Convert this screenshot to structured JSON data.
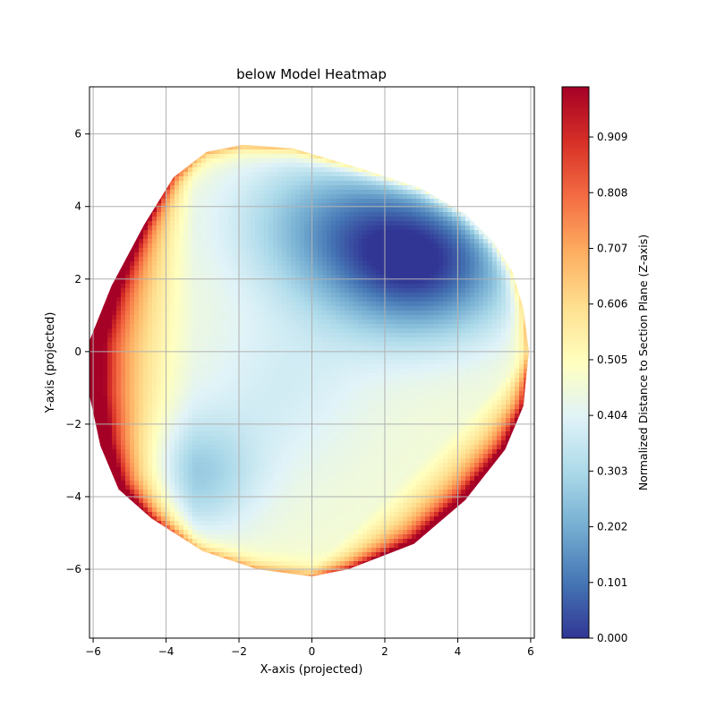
{
  "chart_data": {
    "type": "heatmap",
    "title": "below Model Heatmap",
    "xlabel": "X-axis (projected)",
    "ylabel": "Y-axis (projected)",
    "xlim": [
      -6.1,
      6.1
    ],
    "ylim": [
      -7.9,
      7.3
    ],
    "x_ticks": [
      -6,
      -4,
      -2,
      0,
      2,
      4,
      6
    ],
    "y_ticks": [
      -6,
      -4,
      -2,
      0,
      2,
      4,
      6
    ],
    "grid": true,
    "colorbar": {
      "label": "Normalized Distance to Section Plane (Z-axis)",
      "range": [
        0.0,
        1.0
      ],
      "ticks": [
        0.0,
        0.101,
        0.202,
        0.303,
        0.404,
        0.505,
        0.606,
        0.707,
        0.808,
        0.909
      ],
      "tick_labels": [
        "0.000",
        "0.101",
        "0.202",
        "0.303",
        "0.404",
        "0.505",
        "0.606",
        "0.707",
        "0.808",
        "0.909"
      ],
      "colormap": "RdYlBu_r",
      "stops": [
        "#313695",
        "#4575b4",
        "#74add1",
        "#abd9e9",
        "#e0f3f8",
        "#ffffbf",
        "#fee090",
        "#fdae61",
        "#f46d43",
        "#d73027",
        "#a50026"
      ]
    },
    "boundary": [
      [
        -1.9,
        5.7
      ],
      [
        -0.5,
        5.6
      ],
      [
        1.5,
        5.0
      ],
      [
        3.0,
        4.5
      ],
      [
        4.2,
        3.8
      ],
      [
        5.0,
        3.0
      ],
      [
        5.5,
        2.2
      ],
      [
        5.8,
        1.2
      ],
      [
        5.95,
        0.0
      ],
      [
        5.8,
        -1.5
      ],
      [
        5.3,
        -2.7
      ],
      [
        4.2,
        -4.1
      ],
      [
        2.8,
        -5.3
      ],
      [
        1.0,
        -6.0
      ],
      [
        0.0,
        -6.2
      ],
      [
        -1.5,
        -6.0
      ],
      [
        -3.0,
        -5.5
      ],
      [
        -4.4,
        -4.6
      ],
      [
        -5.3,
        -3.8
      ],
      [
        -5.8,
        -2.6
      ],
      [
        -6.1,
        -1.2
      ],
      [
        -6.1,
        0.3
      ],
      [
        -5.5,
        1.8
      ],
      [
        -4.6,
        3.5
      ],
      [
        -3.8,
        4.8
      ],
      [
        -2.9,
        5.5
      ]
    ],
    "field_blobs": [
      {
        "x": 3.0,
        "y": 2.4,
        "sx": 2.6,
        "sy": 2.0,
        "value": -0.42
      },
      {
        "x": 0.6,
        "y": 3.6,
        "sx": 2.8,
        "sy": 2.0,
        "value": -0.22
      },
      {
        "x": -3.2,
        "y": -3.4,
        "sx": 1.7,
        "sy": 1.6,
        "value": -0.18
      },
      {
        "x": -0.8,
        "y": -1.0,
        "sx": 2.4,
        "sy": 2.4,
        "value": -0.08
      }
    ],
    "field_base": 0.46,
    "edge_hot_sides": [
      "left",
      "lower-right"
    ]
  }
}
